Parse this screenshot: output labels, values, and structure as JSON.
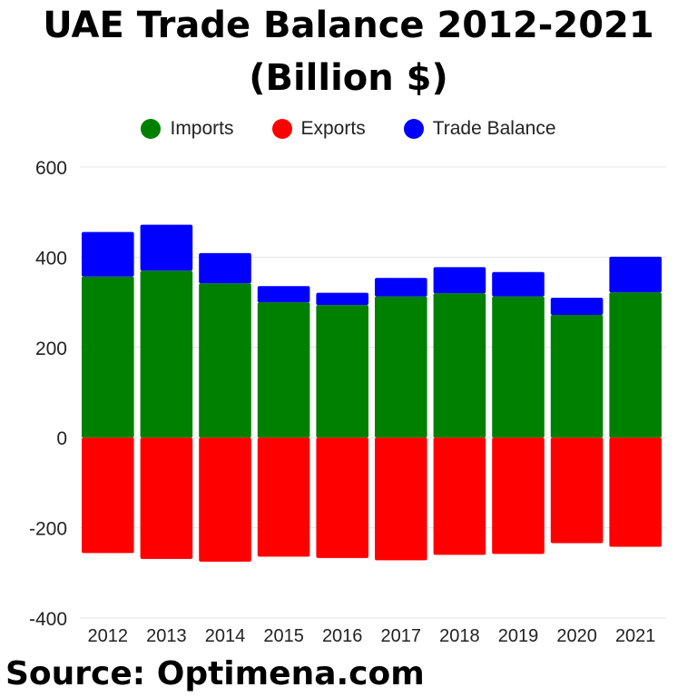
{
  "title_line1": "UAE Trade Balance 2012-2021",
  "title_line2": "(Billion $)",
  "source": "Source: Optimena.com",
  "chart_data": {
    "type": "bar",
    "stacked": true,
    "title": "UAE Trade Balance 2012-2021 (Billion $)",
    "categories": [
      "2012",
      "2013",
      "2014",
      "2015",
      "2016",
      "2017",
      "2018",
      "2019",
      "2020",
      "2021"
    ],
    "series": [
      {
        "name": "Imports",
        "color": "#008000",
        "values": [
          357,
          370,
          342,
          300,
          294,
          313,
          320,
          313,
          272,
          322
        ]
      },
      {
        "name": "Exports",
        "color": "#ff0000",
        "values": [
          -256,
          -269,
          -275,
          -264,
          -267,
          -272,
          -260,
          -258,
          -234,
          -242
        ]
      },
      {
        "name": "Trade Balance",
        "color": "#0000ff",
        "values": [
          99,
          102,
          67,
          36,
          27,
          41,
          58,
          54,
          38,
          79
        ]
      }
    ],
    "yticks": [
      600,
      400,
      200,
      0,
      -200,
      -400
    ],
    "ylim": [
      -400,
      600
    ],
    "grid": true,
    "legend_position": "top"
  }
}
